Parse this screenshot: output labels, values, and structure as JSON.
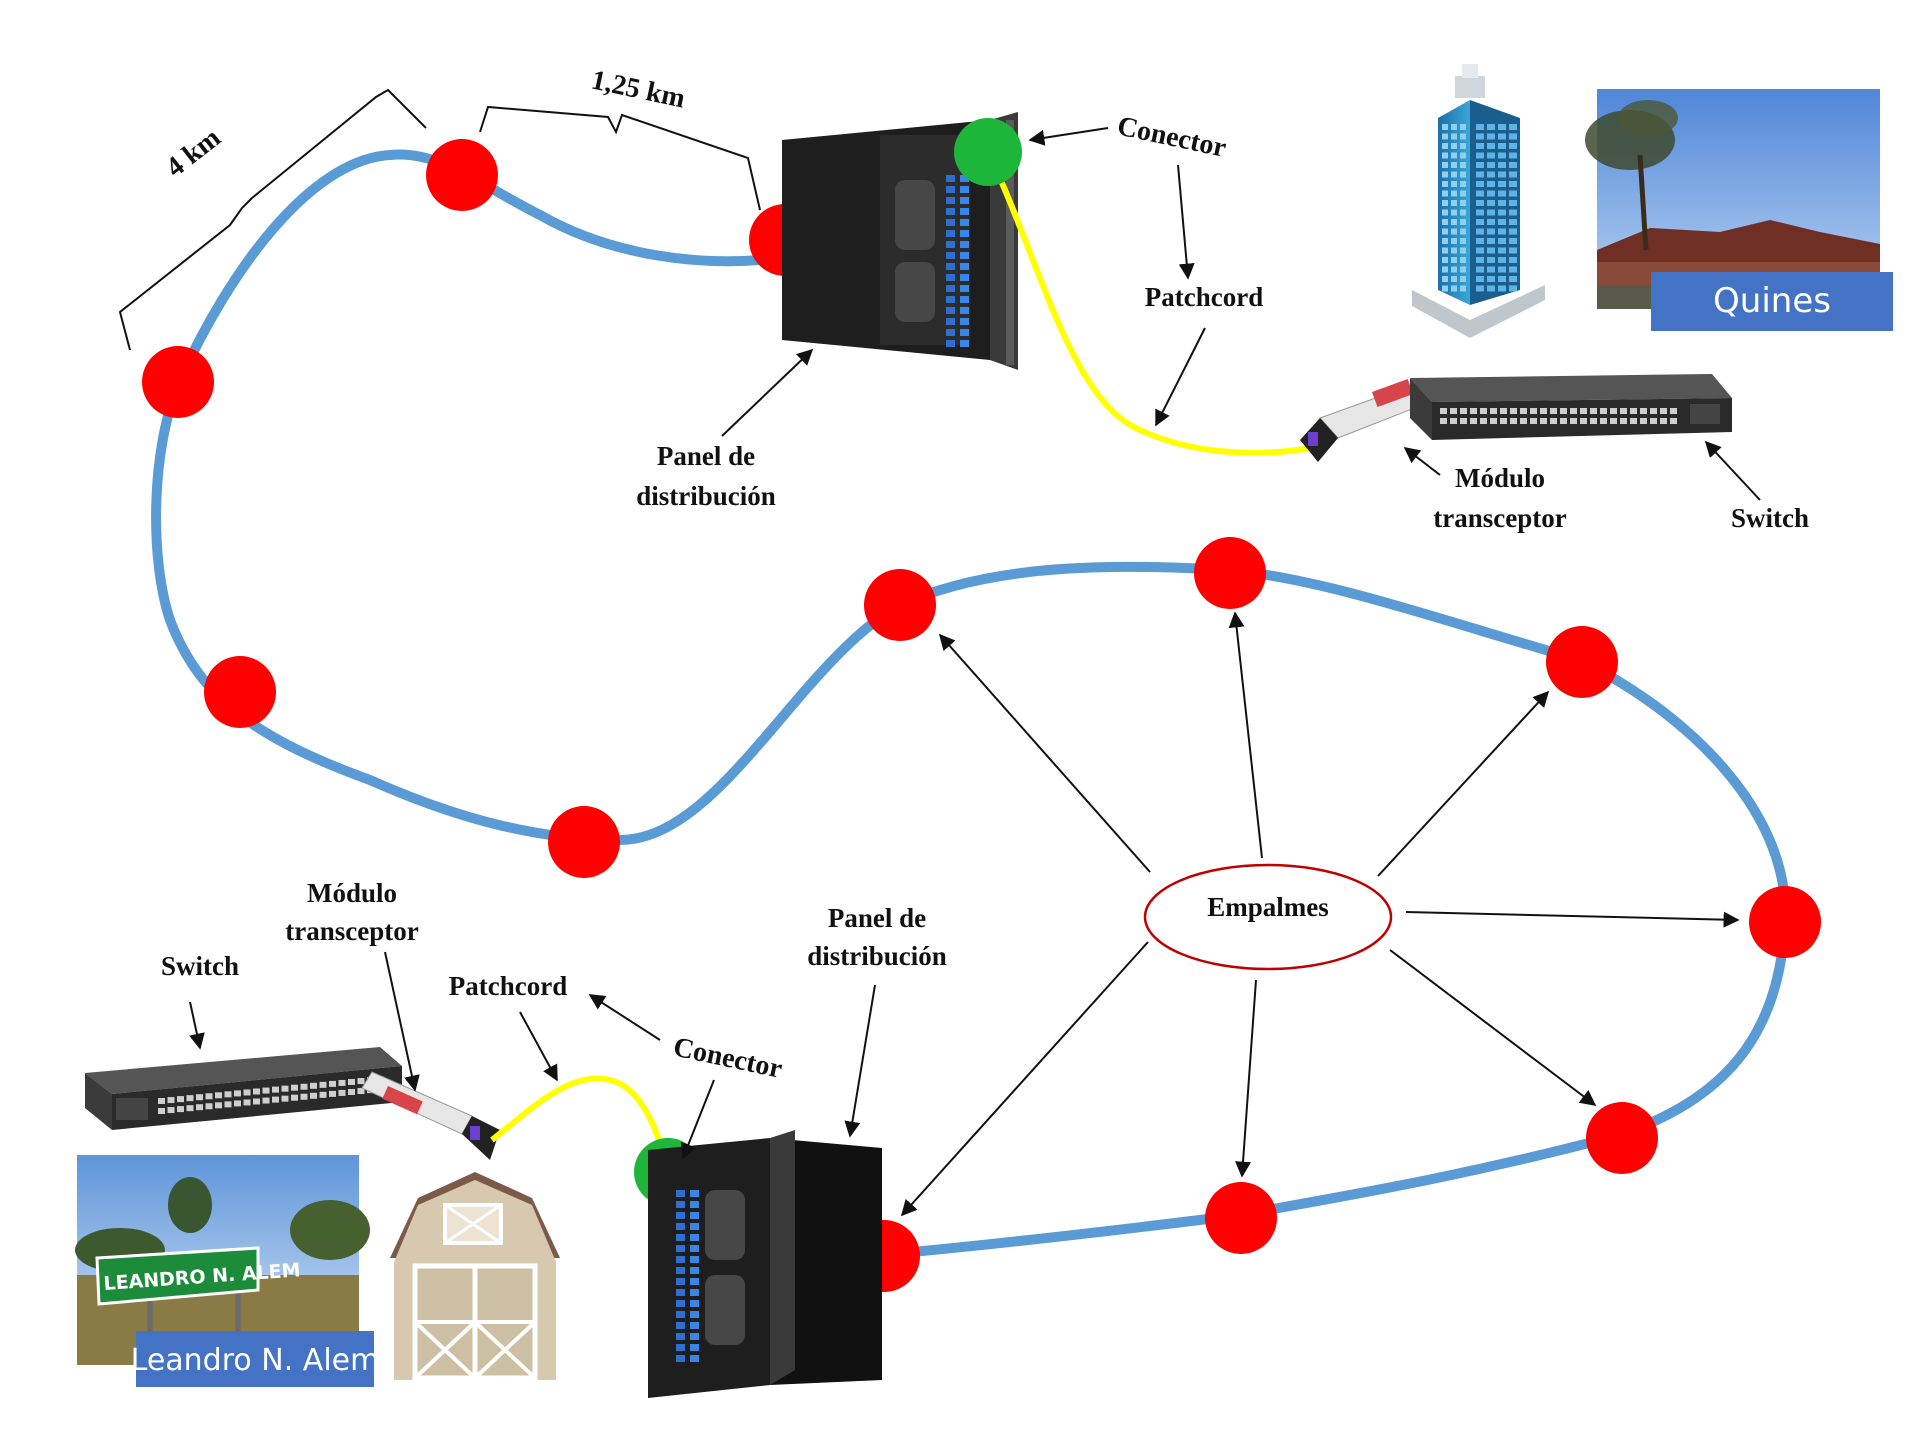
{
  "colors": {
    "fiber": "#5b9bd5",
    "splice": "#ff0000",
    "connector": "#1db53a",
    "patchcord": "#ffff00",
    "caption_bg": "#4472c4",
    "empalmes_outline": "#c00000"
  },
  "distances": {
    "segment_a": "4 km",
    "segment_b": "1,25 km"
  },
  "labels": {
    "conector_top": "Conector",
    "patchcord_top": "Patchcord",
    "panel_top_line1": "Panel de",
    "panel_top_line2": "distribución",
    "modulo_top_line1": "Módulo",
    "modulo_top_line2": "transceptor",
    "switch_top": "Switch",
    "empalmes": "Empalmes",
    "modulo_bottom_line1": "Módulo",
    "modulo_bottom_line2": "transceptor",
    "switch_bottom": "Switch",
    "patchcord_bottom": "Patchcord",
    "conector_bottom": "Conector",
    "panel_bottom_line1": "Panel de",
    "panel_bottom_line2": "distribución"
  },
  "locations": {
    "top_right": "Quines",
    "bottom_left": "Leandro N. Alem",
    "road_sign": "LEANDRO N. ALEM"
  },
  "icons": {
    "panel": "patch-panel-icon",
    "switch": "network-switch-icon",
    "module": "sfp-module-icon",
    "building": "skyscraper-icon",
    "shed": "shed-icon",
    "photo_town": "town-photo-icon",
    "photo_sign": "road-sign-photo-icon"
  }
}
